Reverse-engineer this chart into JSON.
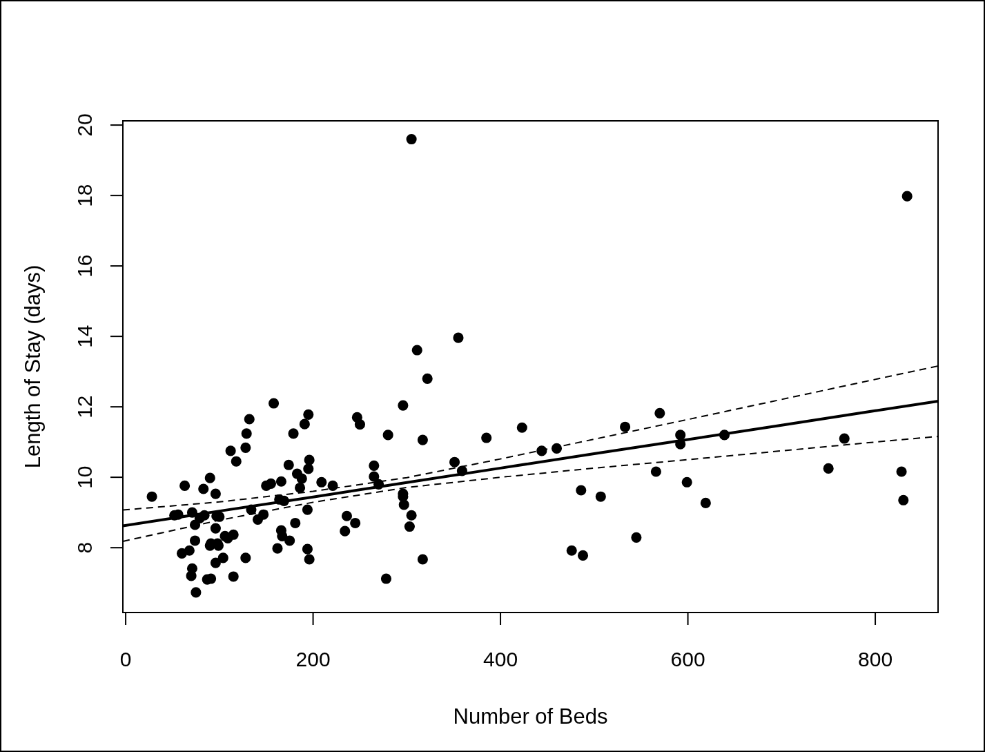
{
  "chart_data": {
    "type": "scatter",
    "xlabel": "Number of Beds",
    "ylabel": "Length of Stay (days)",
    "xlim": [
      -3,
      867
    ],
    "ylim": [
      6.16,
      20.12
    ],
    "xticks": [
      0,
      200,
      400,
      600,
      800
    ],
    "yticks": [
      8,
      10,
      12,
      14,
      16,
      18,
      20
    ],
    "grid": false,
    "series": [
      {
        "color": "#000000",
        "marker": "circle",
        "x": [
          28,
          52,
          56,
          63,
          60,
          68,
          71,
          74,
          74,
          70,
          71,
          75,
          79,
          84,
          83,
          87,
          90,
          91,
          90,
          91,
          96,
          96,
          97,
          100,
          96,
          99,
          98,
          104,
          106,
          109,
          112,
          115,
          115,
          118,
          128,
          129,
          128,
          132,
          134,
          141,
          147,
          150,
          155,
          158,
          162,
          164,
          166,
          166,
          167,
          169,
          175,
          174,
          179,
          181,
          183,
          186,
          188,
          191,
          194,
          194,
          195,
          195,
          196,
          196,
          209,
          221,
          234,
          236,
          245,
          247,
          250,
          265,
          265,
          270,
          278,
          280,
          296,
          296,
          296,
          297,
          305,
          305,
          303,
          311,
          317,
          317,
          322,
          351,
          355,
          359,
          385,
          423,
          444,
          460,
          476,
          486,
          488,
          507,
          533,
          545,
          566,
          570,
          592,
          592,
          599,
          619,
          639,
          750,
          767,
          828,
          830,
          834
        ],
        "values": [
          9.45,
          8.92,
          8.94,
          9.76,
          7.84,
          7.92,
          9.0,
          8.65,
          8.2,
          7.2,
          7.41,
          6.73,
          8.84,
          8.92,
          9.67,
          7.1,
          9.98,
          7.12,
          8.06,
          8.12,
          9.53,
          8.55,
          8.9,
          8.88,
          7.57,
          8.06,
          8.12,
          7.71,
          8.33,
          8.27,
          10.75,
          8.37,
          7.18,
          10.45,
          10.84,
          11.24,
          7.71,
          11.65,
          9.08,
          8.8,
          8.94,
          9.76,
          9.82,
          12.1,
          7.98,
          9.37,
          8.49,
          9.88,
          8.33,
          9.33,
          8.2,
          10.35,
          11.24,
          8.7,
          10.1,
          9.7,
          9.96,
          11.51,
          9.08,
          7.96,
          11.78,
          10.24,
          10.49,
          7.67,
          9.86,
          9.76,
          8.47,
          8.9,
          8.7,
          11.7,
          11.5,
          10.33,
          10.02,
          9.8,
          7.12,
          11.2,
          12.04,
          9.53,
          9.45,
          9.22,
          19.6,
          8.92,
          8.6,
          13.61,
          11.06,
          7.67,
          12.8,
          10.43,
          13.96,
          10.18,
          11.12,
          11.41,
          10.75,
          10.82,
          7.92,
          9.63,
          7.78,
          9.45,
          11.43,
          8.29,
          10.16,
          11.82,
          11.2,
          10.94,
          9.86,
          9.27,
          11.2,
          10.25,
          11.1,
          10.16,
          9.35,
          17.98
        ]
      },
      {
        "type": "line",
        "color": "#000000",
        "marker": "none",
        "line_style": "solid",
        "x": [
          -3,
          100,
          200,
          300,
          400,
          500,
          600,
          700,
          800,
          867
        ],
        "values": [
          8.62,
          9.04,
          9.44,
          9.85,
          10.26,
          10.67,
          11.07,
          11.48,
          11.89,
          12.16
        ]
      },
      {
        "type": "line",
        "color": "#000000",
        "marker": "none",
        "line_style": "dashed",
        "x": [
          -3,
          100,
          200,
          300,
          400,
          500,
          600,
          700,
          800,
          867
        ],
        "values": [
          9.07,
          9.3,
          9.6,
          9.99,
          10.52,
          11.08,
          11.64,
          12.21,
          12.78,
          13.16
        ]
      },
      {
        "type": "line",
        "color": "#000000",
        "marker": "none",
        "line_style": "dashed",
        "x": [
          -3,
          100,
          200,
          300,
          400,
          500,
          600,
          700,
          800,
          867
        ],
        "values": [
          8.18,
          8.78,
          9.29,
          9.71,
          10.0,
          10.26,
          10.5,
          10.75,
          11.0,
          11.16
        ]
      }
    ]
  }
}
